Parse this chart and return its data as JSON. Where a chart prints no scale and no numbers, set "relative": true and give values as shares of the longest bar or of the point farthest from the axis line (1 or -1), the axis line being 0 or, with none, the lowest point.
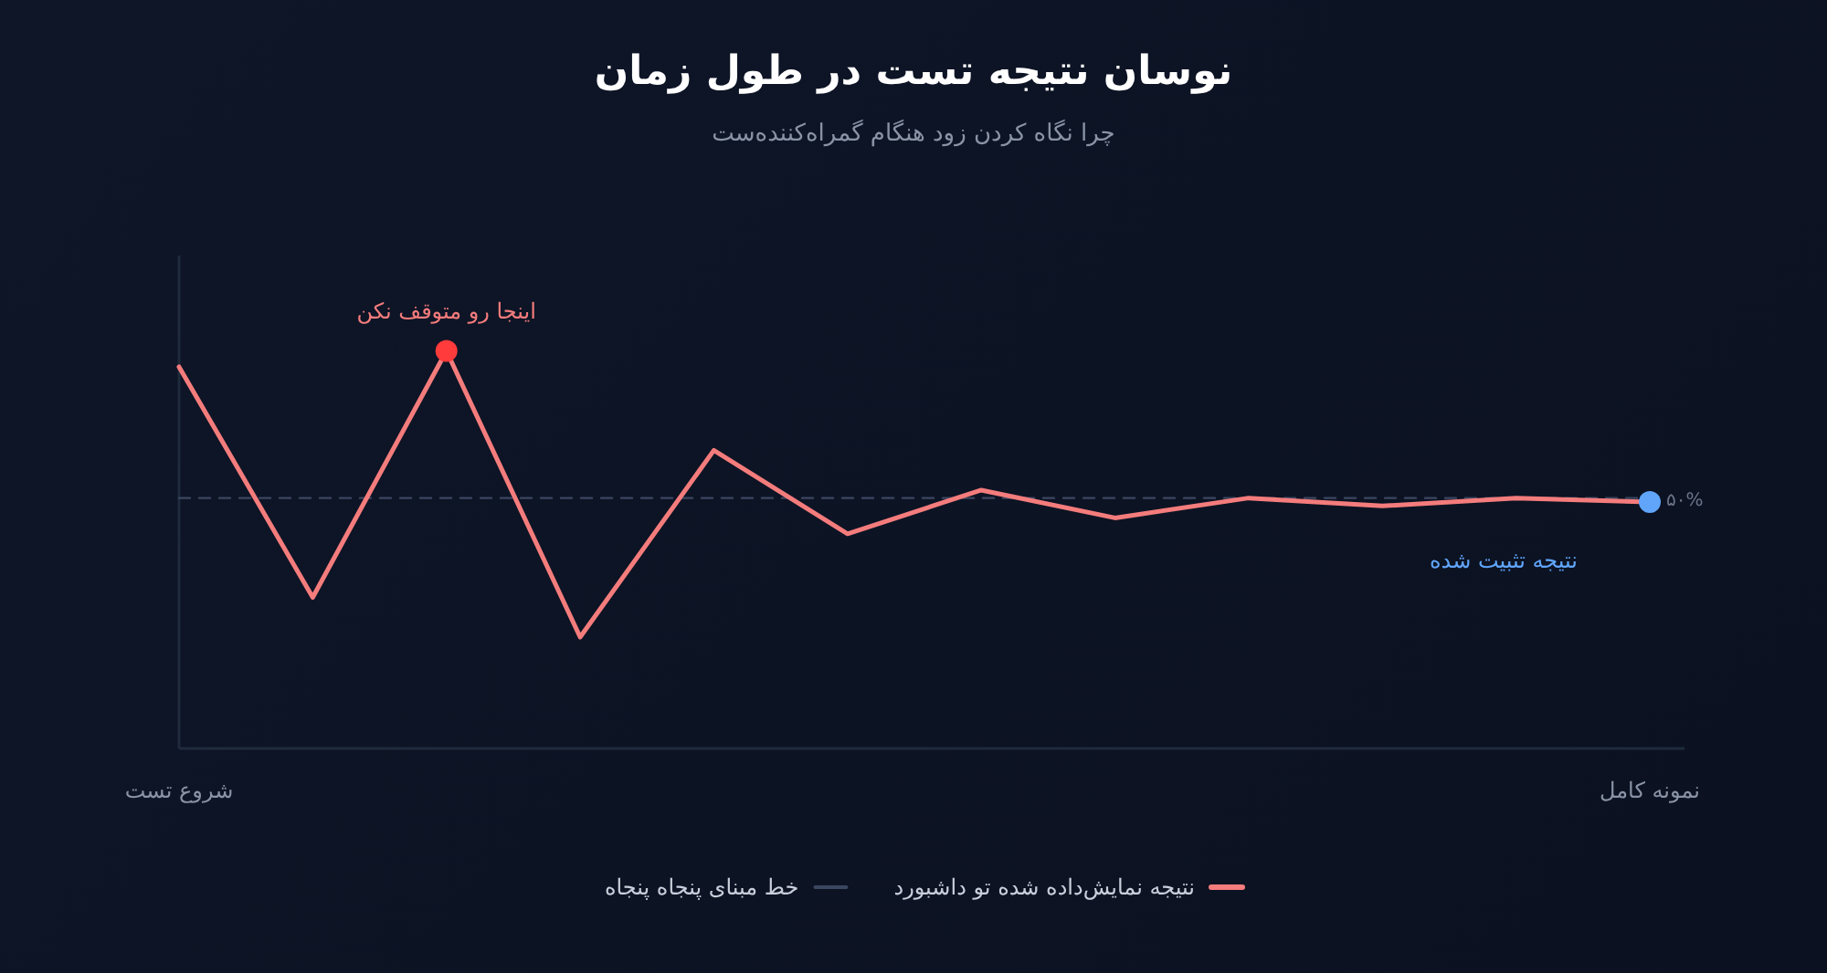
{
  "chart_data": {
    "type": "line",
    "title": "نوسان نتیجه تست در طول زمان",
    "subtitle": "چرا نگاه کردن زود هنگام گمراه‌کننده‌ست",
    "categories": [
      "شروع تست",
      null,
      null,
      null,
      null,
      null,
      null,
      null,
      null,
      null,
      null,
      "نمونه کامل"
    ],
    "relative": true,
    "grid": false,
    "legend": "bottom",
    "series": [
      {
        "name": "نتیجه نمایش‌داده شده تو داشبورد",
        "color": "#f47c7c",
        "line_style": "solid",
        "values": [
          0.96,
          0.38,
          1,
          0.28,
          0.75,
          0.54,
          0.65,
          0.58,
          0.63,
          0.61,
          0.63,
          0.62
        ]
      },
      {
        "name": "خط مبنای پنجاه پنجاه",
        "color": "#3b4660",
        "line_style": "dashed",
        "values": [
          0.63,
          0.63,
          0.63,
          0.63,
          0.63,
          0.63,
          0.63,
          0.63,
          0.63,
          0.63,
          0.63,
          0.63
        ]
      },
      {
        "type": "scatter",
        "marker": "circle",
        "colors": [
          null,
          null,
          "#ff3b3b",
          null,
          null,
          null,
          null,
          null,
          null,
          null,
          null,
          "#60a5fa"
        ],
        "values": [
          null,
          null,
          1,
          null,
          null,
          null,
          null,
          null,
          null,
          null,
          null,
          0.62
        ]
      }
    ],
    "annotations": [
      {
        "text": "اینجا رو متوقف نکن",
        "y": 1
      },
      "نتیجه تثبیت شده",
      {
        "text": "۵۰%",
        "x": "نمونه کامل",
        "y": 0.63
      }
    ]
  }
}
